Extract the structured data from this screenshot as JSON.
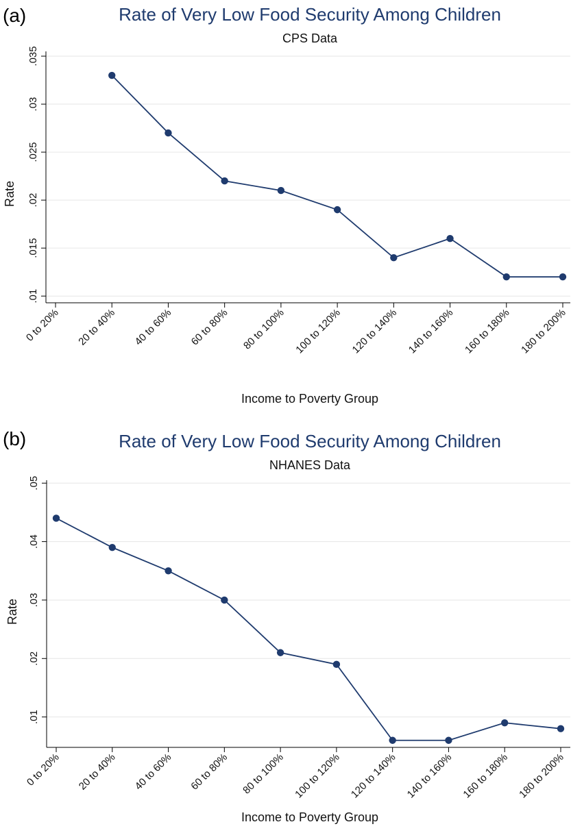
{
  "chart_data": [
    {
      "type": "line",
      "panel_label": "(a)",
      "title": "Rate of Very Low Food Security Among Children",
      "subtitle": "CPS Data",
      "xlabel": "Income to Poverty Group",
      "ylabel": "Rate",
      "categories": [
        "0 to 20%",
        "20 to 40%",
        "40 to 60%",
        "60 to 80%",
        "80 to 100%",
        "100 to 120%",
        "120 to 140%",
        "140 to 160%",
        "160 to 180%",
        "180 to 200%"
      ],
      "series": [
        {
          "values": [
            null,
            0.033,
            0.027,
            0.022,
            0.021,
            0.019,
            0.014,
            0.016,
            0.012,
            0.012
          ]
        }
      ],
      "yticks": [
        0.01,
        0.015,
        0.02,
        0.025,
        0.03,
        0.035
      ],
      "ytick_labels": [
        ".01",
        ".015",
        ".02",
        ".025",
        ".03",
        ".035"
      ],
      "ylim": [
        0.0093,
        0.0355
      ],
      "grid": true,
      "color": "#1f3b6e"
    },
    {
      "type": "line",
      "panel_label": "(b)",
      "title": "Rate of Very Low Food Security Among Children",
      "subtitle": "NHANES Data",
      "xlabel": "Income to Poverty Group",
      "ylabel": "Rate",
      "categories": [
        "0 to 20%",
        "20 to 40%",
        "40 to 60%",
        "60 to 80%",
        "80 to 100%",
        "100 to 120%",
        "120 to 140%",
        "140 to 160%",
        "160 to 180%",
        "180 to 200%"
      ],
      "series": [
        {
          "values": [
            0.044,
            0.039,
            0.035,
            0.03,
            0.021,
            0.019,
            0.006,
            0.006,
            0.009,
            0.008
          ]
        }
      ],
      "yticks": [
        0.01,
        0.02,
        0.03,
        0.04,
        0.05
      ],
      "ytick_labels": [
        ".01",
        ".02",
        ".03",
        ".04",
        ".05"
      ],
      "ylim": [
        0.0048,
        0.0505
      ],
      "grid": true,
      "color": "#1f3b6e"
    }
  ]
}
